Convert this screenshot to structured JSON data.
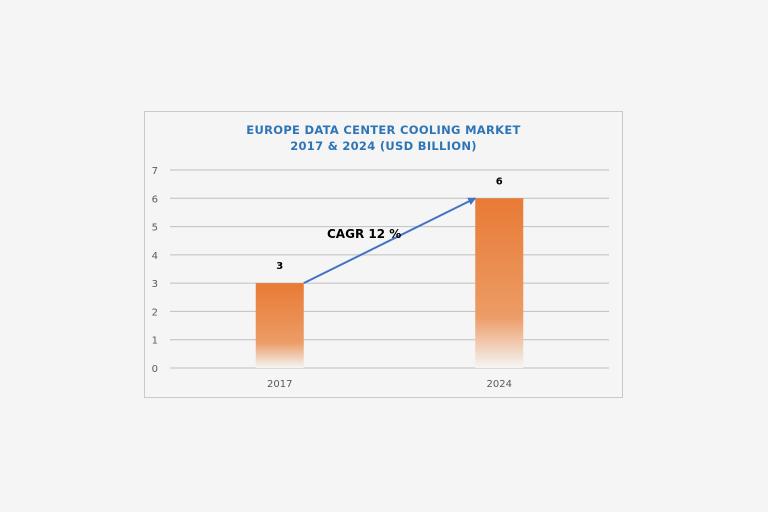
{
  "chart_data": {
    "type": "bar",
    "title": "EUROPE DATA CENTER COOLING MARKET",
    "subtitle": "2017 & 2024 (USD BILLION)",
    "categories": [
      "2017",
      "2024"
    ],
    "values": [
      3,
      6
    ],
    "data_labels": [
      "3",
      "6"
    ],
    "xlabel": "",
    "ylabel": "",
    "ylim": [
      0,
      7
    ],
    "yticks": [
      0,
      1,
      2,
      3,
      4,
      5,
      6,
      7
    ],
    "grid": true,
    "legend": "none",
    "annotation": {
      "text": "CAGR 12 %",
      "arrow_from": {
        "category": "2017",
        "value": 3
      },
      "arrow_to": {
        "category": "2024",
        "value": 6
      }
    },
    "colors": {
      "bar_top": "#e87a35",
      "bar_bottom": "#f5f5f5",
      "arrow": "#4472c4",
      "title": "#2e75b6",
      "grid": "#bfbfbf"
    }
  }
}
